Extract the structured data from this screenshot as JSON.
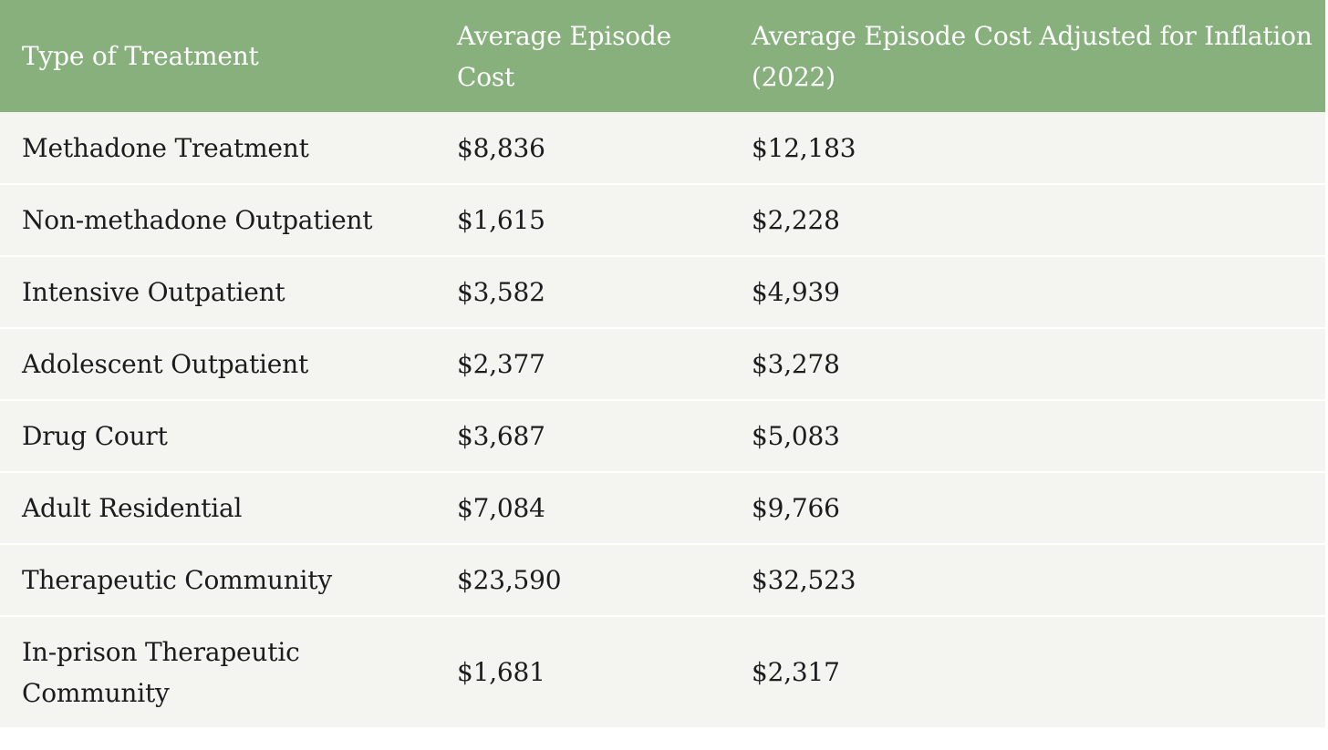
{
  "table": {
    "headers": [
      "Type of Treatment",
      "Average Episode Cost",
      "Average Episode Cost Adjusted for Inflation (2022)"
    ],
    "rows": [
      [
        "Methadone Treatment",
        "$8,836",
        "$12,183"
      ],
      [
        "Non-methadone Outpatient",
        "$1,615",
        "$2,228"
      ],
      [
        "Intensive Outpatient",
        "$3,582",
        "$4,939"
      ],
      [
        "Adolescent Outpatient",
        "$2,377",
        "$3,278"
      ],
      [
        "Drug Court",
        "$3,687",
        "$5,083"
      ],
      [
        "Adult Residential",
        "$7,084",
        "$9,766"
      ],
      [
        "Therapeutic Community",
        "$23,590",
        "$32,523"
      ],
      [
        "In-prison Therapeutic Community",
        "$1,681",
        "$2,317"
      ]
    ]
  },
  "colors": {
    "header_bg": "#87b07d",
    "header_text": "#ffffff",
    "row_bg": "#f4f5f1",
    "row_text": "#1c1c1c"
  }
}
